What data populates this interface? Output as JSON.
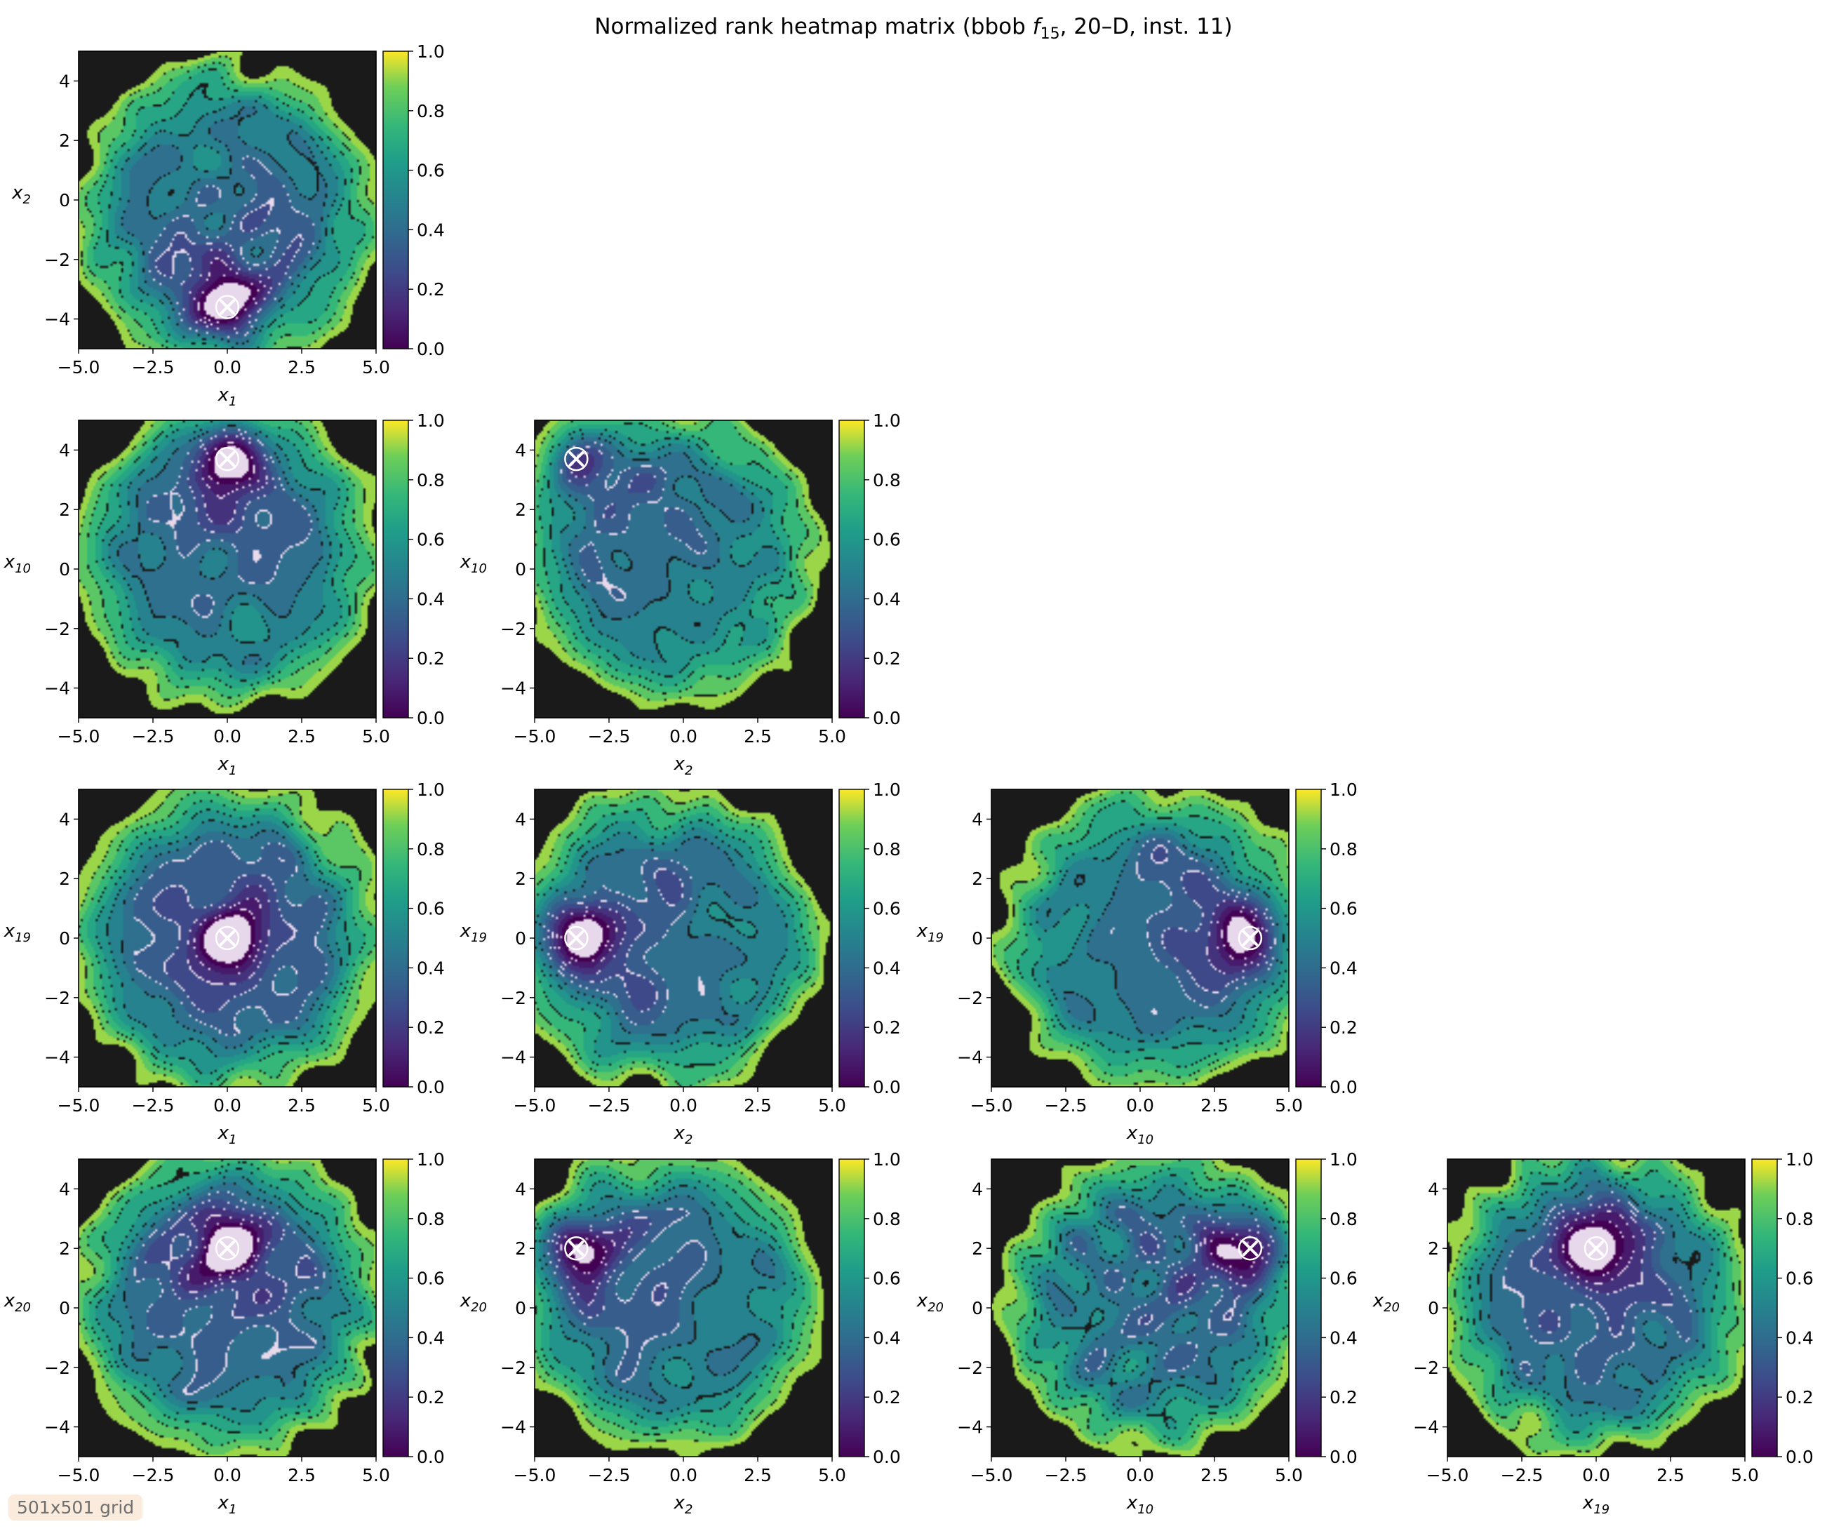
{
  "figure": {
    "title_prefix": "Normalized rank heatmap matrix (bbob ",
    "title_func": "f",
    "title_sub": "15",
    "title_suffix": ", 20–D, inst. 11)",
    "grid_note": "501x501 grid",
    "colormap": "viridis",
    "contour_colors": {
      "outer": "#1a1a1a",
      "inner": "#e8d8ec"
    },
    "marker_color": "#ffffff",
    "marker": "x"
  },
  "chart_data": [
    {
      "type": "heatmap",
      "xvar": "x",
      "xsub": "1",
      "yvar": "x",
      "ysub": "2",
      "xlim": [
        -5,
        5
      ],
      "ylim": [
        -5,
        5
      ],
      "xticks": [
        "−5.0",
        "−2.5",
        "0.0",
        "2.5",
        "5.0"
      ],
      "yticks": [
        "−4",
        "−2",
        "0",
        "2",
        "4"
      ],
      "colorbar": {
        "range": [
          0,
          1
        ],
        "ticks": [
          "0.0",
          "0.2",
          "0.4",
          "0.6",
          "0.8",
          "1.0"
        ]
      },
      "optimum": [
        0.0,
        -3.6
      ]
    },
    {
      "type": "heatmap",
      "xvar": "x",
      "xsub": "1",
      "yvar": "x",
      "ysub": "10",
      "xlim": [
        -5,
        5
      ],
      "ylim": [
        -5,
        5
      ],
      "xticks": [
        "−5.0",
        "−2.5",
        "0.0",
        "2.5",
        "5.0"
      ],
      "yticks": [
        "−4",
        "−2",
        "0",
        "2",
        "4"
      ],
      "colorbar": {
        "range": [
          0,
          1
        ],
        "ticks": [
          "0.0",
          "0.2",
          "0.4",
          "0.6",
          "0.8",
          "1.0"
        ]
      },
      "optimum": [
        0.0,
        3.7
      ]
    },
    {
      "type": "heatmap",
      "xvar": "x",
      "xsub": "2",
      "yvar": "x",
      "ysub": "10",
      "xlim": [
        -5,
        5
      ],
      "ylim": [
        -5,
        5
      ],
      "xticks": [
        "−5.0",
        "−2.5",
        "0.0",
        "2.5",
        "5.0"
      ],
      "yticks": [
        "−4",
        "−2",
        "0",
        "2",
        "4"
      ],
      "colorbar": {
        "range": [
          0,
          1
        ],
        "ticks": [
          "0.0",
          "0.2",
          "0.4",
          "0.6",
          "0.8",
          "1.0"
        ]
      },
      "optimum": [
        -3.6,
        3.7
      ]
    },
    {
      "type": "heatmap",
      "xvar": "x",
      "xsub": "1",
      "yvar": "x",
      "ysub": "19",
      "xlim": [
        -5,
        5
      ],
      "ylim": [
        -5,
        5
      ],
      "xticks": [
        "−5.0",
        "−2.5",
        "0.0",
        "2.5",
        "5.0"
      ],
      "yticks": [
        "−4",
        "−2",
        "0",
        "2",
        "4"
      ],
      "colorbar": {
        "range": [
          0,
          1
        ],
        "ticks": [
          "0.0",
          "0.2",
          "0.4",
          "0.6",
          "0.8",
          "1.0"
        ]
      },
      "optimum": [
        0.0,
        0.0
      ]
    },
    {
      "type": "heatmap",
      "xvar": "x",
      "xsub": "2",
      "yvar": "x",
      "ysub": "19",
      "xlim": [
        -5,
        5
      ],
      "ylim": [
        -5,
        5
      ],
      "xticks": [
        "−5.0",
        "−2.5",
        "0.0",
        "2.5",
        "5.0"
      ],
      "yticks": [
        "−4",
        "−2",
        "0",
        "2",
        "4"
      ],
      "colorbar": {
        "range": [
          0,
          1
        ],
        "ticks": [
          "0.0",
          "0.2",
          "0.4",
          "0.6",
          "0.8",
          "1.0"
        ]
      },
      "optimum": [
        -3.6,
        0.0
      ]
    },
    {
      "type": "heatmap",
      "xvar": "x",
      "xsub": "10",
      "yvar": "x",
      "ysub": "19",
      "xlim": [
        -5,
        5
      ],
      "ylim": [
        -5,
        5
      ],
      "xticks": [
        "−5.0",
        "−2.5",
        "0.0",
        "2.5",
        "5.0"
      ],
      "yticks": [
        "−4",
        "−2",
        "0",
        "2",
        "4"
      ],
      "colorbar": {
        "range": [
          0,
          1
        ],
        "ticks": [
          "0.0",
          "0.2",
          "0.4",
          "0.6",
          "0.8",
          "1.0"
        ]
      },
      "optimum": [
        3.7,
        0.0
      ]
    },
    {
      "type": "heatmap",
      "xvar": "x",
      "xsub": "1",
      "yvar": "x",
      "ysub": "20",
      "xlim": [
        -5,
        5
      ],
      "ylim": [
        -5,
        5
      ],
      "xticks": [
        "−5.0",
        "−2.5",
        "0.0",
        "2.5",
        "5.0"
      ],
      "yticks": [
        "−4",
        "−2",
        "0",
        "2",
        "4"
      ],
      "colorbar": {
        "range": [
          0,
          1
        ],
        "ticks": [
          "0.0",
          "0.2",
          "0.4",
          "0.6",
          "0.8",
          "1.0"
        ]
      },
      "optimum": [
        0.0,
        2.0
      ]
    },
    {
      "type": "heatmap",
      "xvar": "x",
      "xsub": "2",
      "yvar": "x",
      "ysub": "20",
      "xlim": [
        -5,
        5
      ],
      "ylim": [
        -5,
        5
      ],
      "xticks": [
        "−5.0",
        "−2.5",
        "0.0",
        "2.5",
        "5.0"
      ],
      "yticks": [
        "−4",
        "−2",
        "0",
        "2",
        "4"
      ],
      "colorbar": {
        "range": [
          0,
          1
        ],
        "ticks": [
          "0.0",
          "0.2",
          "0.4",
          "0.6",
          "0.8",
          "1.0"
        ]
      },
      "optimum": [
        -3.6,
        2.0
      ]
    },
    {
      "type": "heatmap",
      "xvar": "x",
      "xsub": "10",
      "yvar": "x",
      "ysub": "20",
      "xlim": [
        -5,
        5
      ],
      "ylim": [
        -5,
        5
      ],
      "xticks": [
        "−5.0",
        "−2.5",
        "0.0",
        "2.5",
        "5.0"
      ],
      "yticks": [
        "−4",
        "−2",
        "0",
        "2",
        "4"
      ],
      "colorbar": {
        "range": [
          0,
          1
        ],
        "ticks": [
          "0.0",
          "0.2",
          "0.4",
          "0.6",
          "0.8",
          "1.0"
        ]
      },
      "optimum": [
        3.7,
        2.0
      ]
    },
    {
      "type": "heatmap",
      "xvar": "x",
      "xsub": "19",
      "yvar": "x",
      "ysub": "20",
      "xlim": [
        -5,
        5
      ],
      "ylim": [
        -5,
        5
      ],
      "xticks": [
        "−5.0",
        "−2.5",
        "0.0",
        "2.5",
        "5.0"
      ],
      "yticks": [
        "−4",
        "−2",
        "0",
        "2",
        "4"
      ],
      "colorbar": {
        "range": [
          0,
          1
        ],
        "ticks": [
          "0.0",
          "0.2",
          "0.4",
          "0.6",
          "0.8",
          "1.0"
        ]
      },
      "optimum": [
        0.0,
        2.0
      ]
    }
  ]
}
